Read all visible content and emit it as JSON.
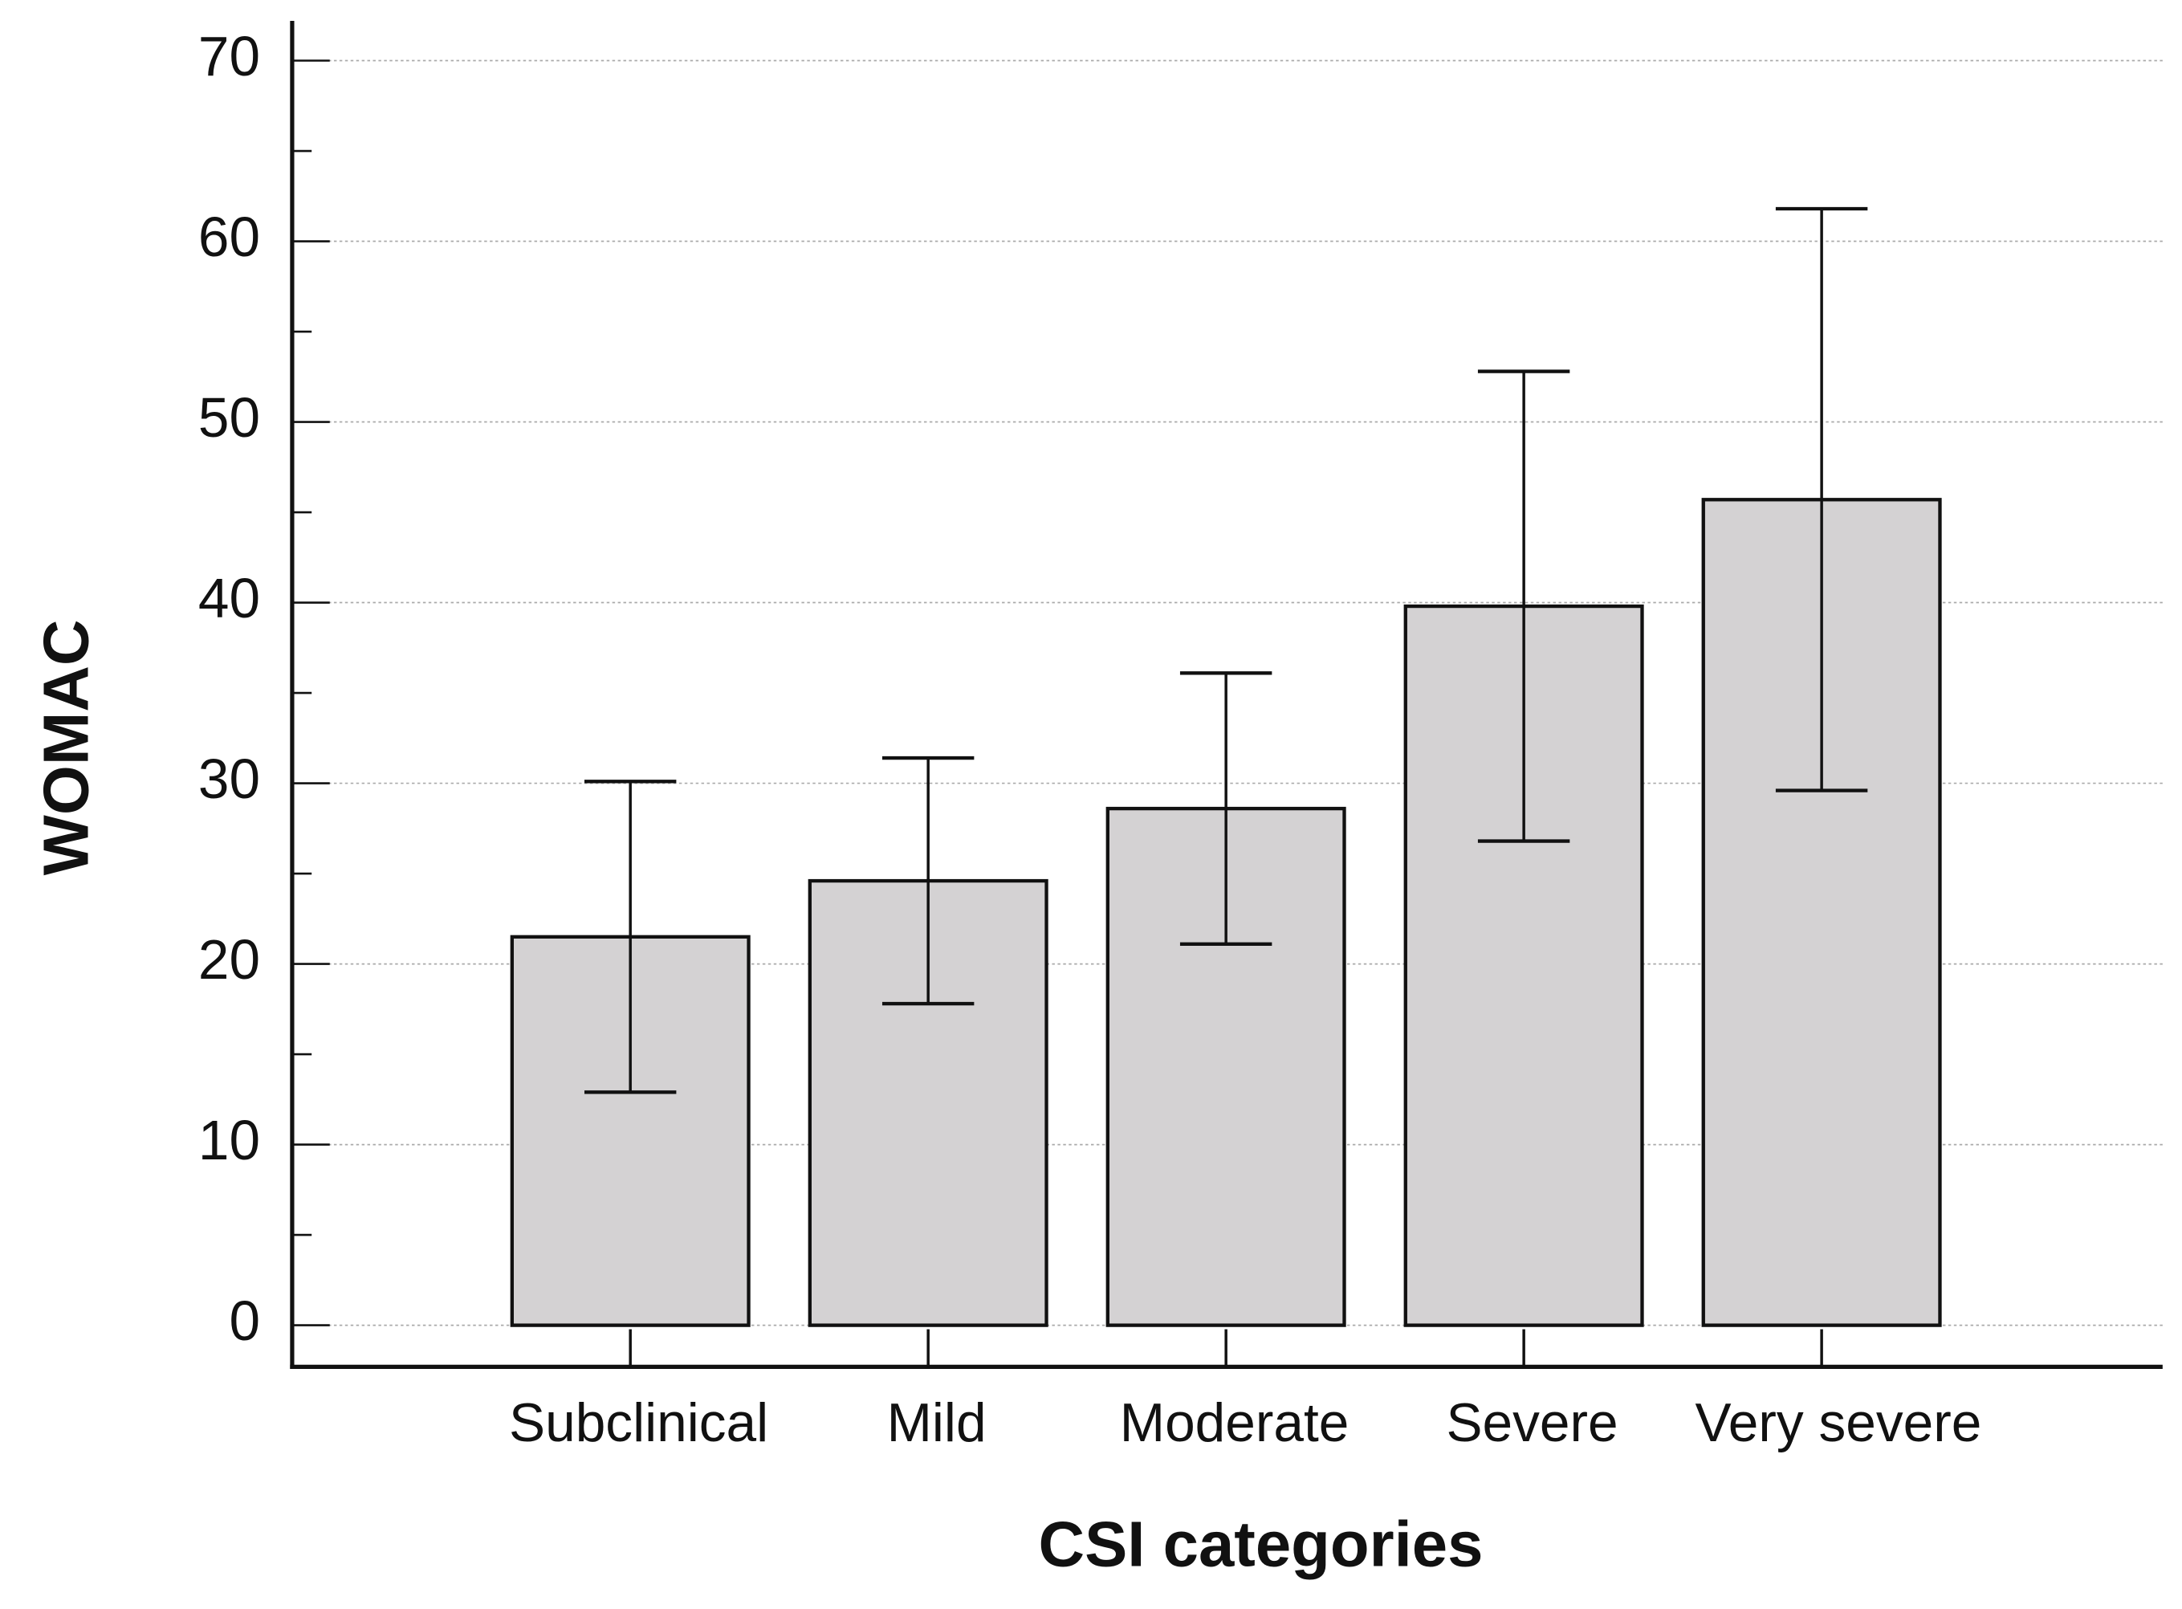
{
  "chart_data": {
    "type": "bar",
    "x_label": "CSI categories",
    "y_label": "WOMAC",
    "categories": [
      "Subclinical",
      "Mild",
      "Moderate",
      "Severe",
      "Very severe"
    ],
    "values": [
      21.5,
      24.6,
      28.6,
      39.8,
      45.7
    ],
    "errors": [
      8.6,
      6.8,
      7.5,
      13.0,
      16.1
    ],
    "color": "#d4d2d3",
    "ylim": [
      -2.3,
      72.2
    ],
    "yticks": [
      0,
      10,
      20,
      30,
      40,
      50,
      60,
      70
    ],
    "yminor_ticks": [
      5,
      15,
      25,
      35,
      45,
      55,
      65
    ],
    "grid": true
  }
}
